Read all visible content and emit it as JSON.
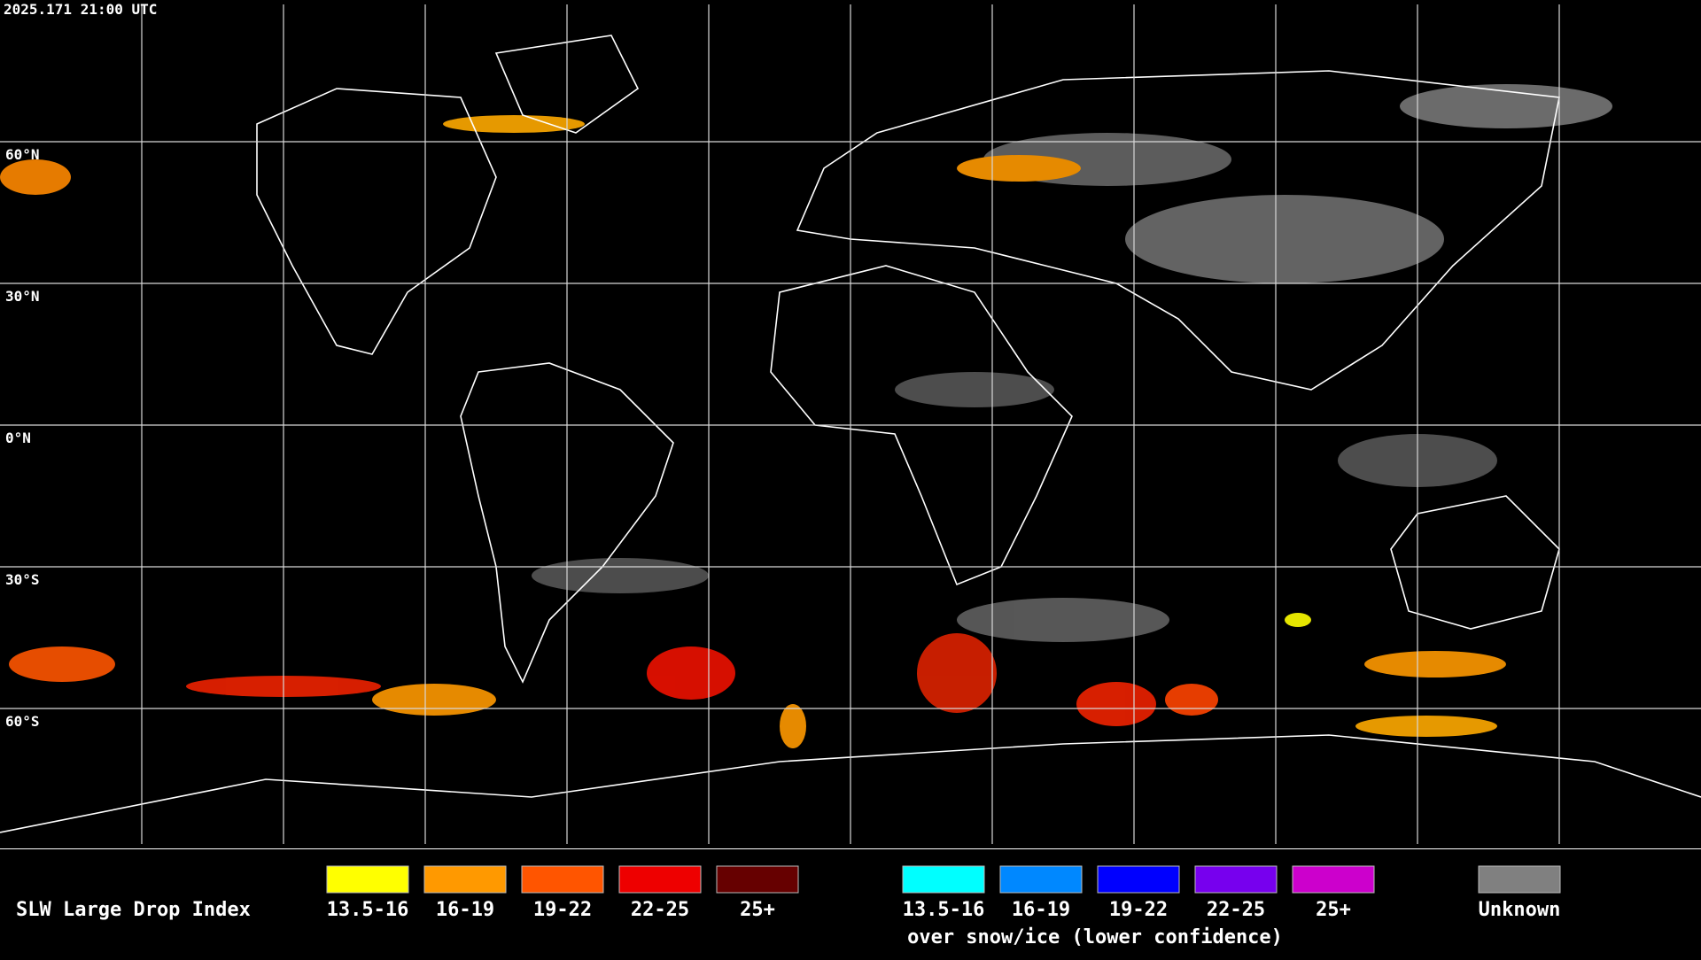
{
  "header": {
    "timestamp": "2025.171 21:00 UTC"
  },
  "map": {
    "latitude_labels": [
      "60°N",
      "30°N",
      "0°N",
      "30°S",
      "60°S"
    ]
  },
  "legend": {
    "title": "SLW Large Drop Index",
    "classes": [
      {
        "label": "13.5-16",
        "color": "#ffff00"
      },
      {
        "label": "16-19",
        "color": "#ff9900"
      },
      {
        "label": "19-22",
        "color": "#ff5500"
      },
      {
        "label": "22-25",
        "color": "#ee0000"
      },
      {
        "label": "25+",
        "color": "#660000"
      }
    ],
    "snow_classes": [
      {
        "label": "13.5-16",
        "color": "#00ffff"
      },
      {
        "label": "16-19",
        "color": "#0088ff"
      },
      {
        "label": "19-22",
        "color": "#0000ff"
      },
      {
        "label": "22-25",
        "color": "#7700ee"
      },
      {
        "label": "25+",
        "color": "#cc00cc"
      }
    ],
    "snow_note": "over snow/ice (lower confidence)",
    "unknown": {
      "label": "Unknown",
      "color": "#808080"
    }
  }
}
